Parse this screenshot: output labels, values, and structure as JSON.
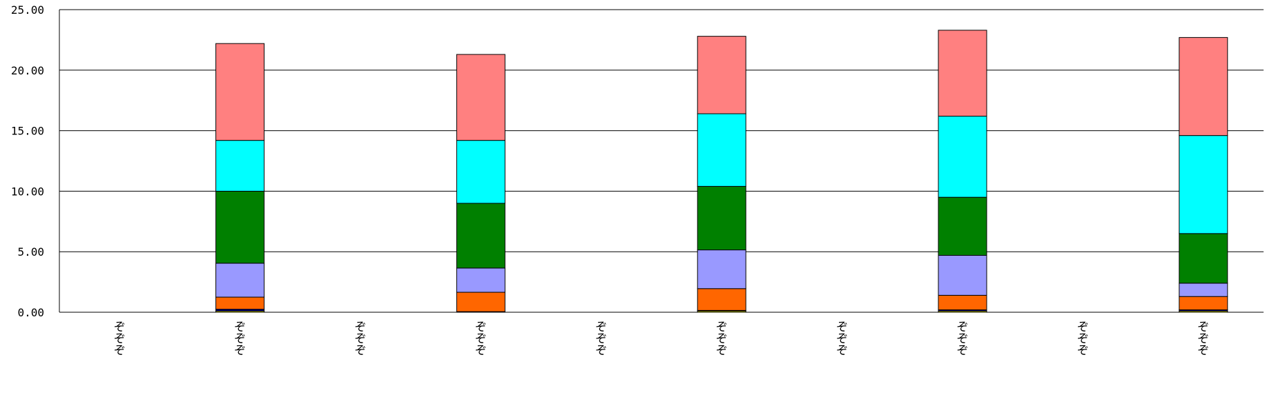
{
  "chart_data": {
    "type": "bar",
    "stacked": true,
    "title": "",
    "xlabel": "",
    "ylabel": "",
    "ylim": [
      0,
      25
    ],
    "y_ticks": [
      0,
      5,
      10,
      15,
      20,
      25
    ],
    "y_tick_labels": [
      "0.00",
      "5.00",
      "10.00",
      "15.00",
      "20.00",
      "25.00"
    ],
    "grid": true,
    "legend": "none",
    "categories": [
      "ぞぞぞ",
      "ぞぞぞ",
      "ぞぞぞ",
      "ぞぞぞ",
      "ぞぞぞ",
      "ぞぞぞ",
      "ぞぞぞ",
      "ぞぞぞ",
      "ぞぞぞ",
      "ぞぞぞ"
    ],
    "series": [
      {
        "color": "#FFFF00",
        "values": [
          0,
          0.1,
          0,
          0,
          0,
          0.1,
          0,
          0.1,
          0,
          0.1
        ]
      },
      {
        "color": "#000080",
        "values": [
          0,
          0.15,
          0,
          0.05,
          0,
          0.05,
          0,
          0.1,
          0,
          0.1
        ]
      },
      {
        "color": "#FF6600",
        "values": [
          0,
          1.0,
          0,
          1.6,
          0,
          1.8,
          0,
          1.2,
          0,
          1.1
        ]
      },
      {
        "color": "#9999FF",
        "values": [
          0,
          2.8,
          0,
          2.0,
          0,
          3.2,
          0,
          3.3,
          0,
          1.1
        ]
      },
      {
        "color": "#008000",
        "values": [
          0,
          5.95,
          0,
          5.35,
          0,
          5.25,
          0,
          4.8,
          0,
          4.1
        ]
      },
      {
        "color": "#00FFFF",
        "values": [
          0,
          4.2,
          0,
          5.2,
          0,
          6.0,
          0,
          6.7,
          0,
          8.1
        ]
      },
      {
        "color": "#FF8080",
        "values": [
          0,
          8.0,
          0,
          7.1,
          0,
          6.4,
          0,
          7.1,
          0,
          8.1
        ]
      }
    ]
  }
}
